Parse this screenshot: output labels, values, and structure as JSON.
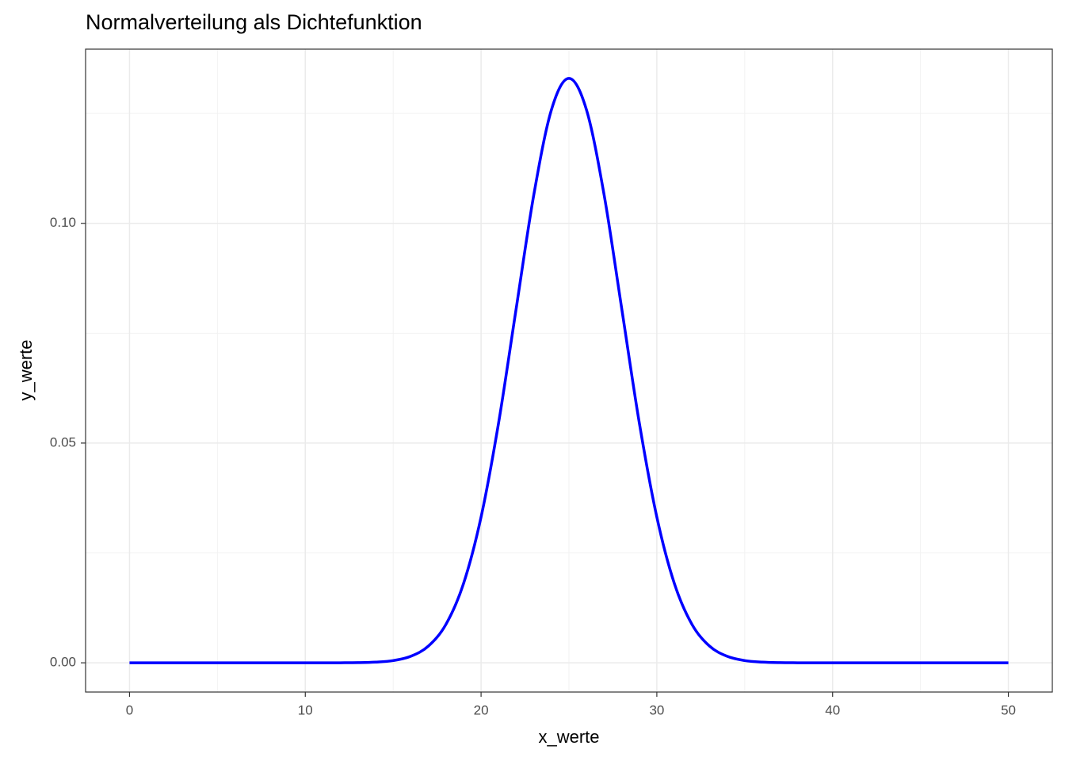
{
  "chart_data": {
    "type": "line",
    "title": "Normalverteilung als Dichtefunktion",
    "x_label": "x_werte",
    "y_label": "y_werte",
    "x": [
      0,
      1,
      2,
      3,
      4,
      5,
      6,
      7,
      8,
      9,
      10,
      11,
      12,
      13,
      14,
      15,
      16,
      17,
      18,
      19,
      20,
      21,
      22,
      23,
      24,
      25,
      26,
      27,
      28,
      29,
      30,
      31,
      32,
      33,
      34,
      35,
      36,
      37,
      38,
      39,
      40,
      41,
      42,
      43,
      44,
      45,
      46,
      47,
      48,
      49,
      50
    ],
    "series": [
      {
        "name": "y_werte",
        "color": "#0000ff",
        "values": [
          0,
          0,
          0,
          0,
          0,
          0,
          0,
          0,
          0,
          0,
          0,
          0,
          1e-05,
          4e-05,
          0.00016,
          0.00051,
          0.00148,
          0.0038,
          0.00874,
          0.018,
          0.03316,
          0.05467,
          0.08066,
          0.10648,
          0.12579,
          0.13298,
          0.12579,
          0.10648,
          0.08066,
          0.05467,
          0.03316,
          0.018,
          0.00874,
          0.0038,
          0.00148,
          0.00051,
          0.00016,
          4e-05,
          1e-05,
          0,
          0,
          0,
          0,
          0,
          0,
          0,
          0,
          0,
          0,
          0,
          0
        ]
      }
    ],
    "xlim": [
      -2.5,
      52.5
    ],
    "xticks": [
      0,
      10,
      20,
      30,
      40,
      50
    ],
    "x_minor_ticks": [
      5,
      15,
      25,
      35,
      45
    ],
    "ylim": [
      -0.00665,
      0.13963
    ],
    "yticks": [
      {
        "value": 0,
        "label": "0.00"
      },
      {
        "value": 0.05,
        "label": "0.05"
      },
      {
        "value": 0.1,
        "label": "0.10"
      }
    ],
    "y_minor_ticks": [
      0.025,
      0.075,
      0.125
    ],
    "grid": true
  }
}
